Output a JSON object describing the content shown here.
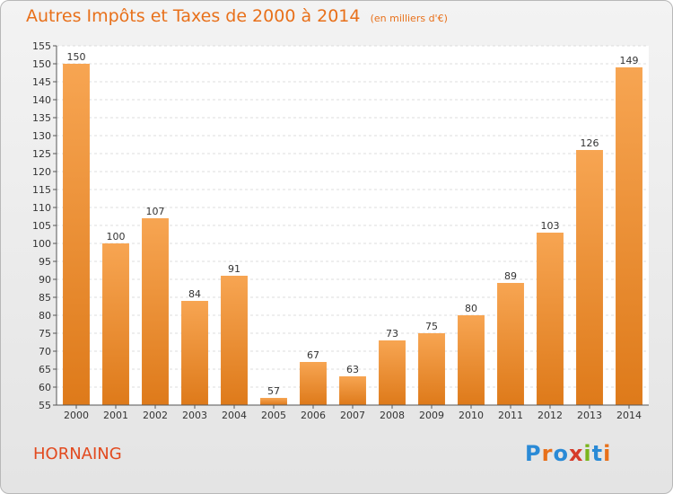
{
  "chart_data": {
    "type": "bar",
    "title": "Autres Impôts et Taxes de 2000 à 2014",
    "subtitle": "(en milliers d'€)",
    "categories": [
      "2000",
      "2001",
      "2002",
      "2003",
      "2004",
      "2005",
      "2006",
      "2007",
      "2008",
      "2009",
      "2010",
      "2011",
      "2012",
      "2013",
      "2014"
    ],
    "values": [
      150,
      100,
      107,
      84,
      91,
      57,
      67,
      63,
      73,
      75,
      80,
      89,
      103,
      126,
      149
    ],
    "ylim": [
      55,
      155
    ],
    "yticks": [
      55,
      60,
      65,
      70,
      75,
      80,
      85,
      90,
      95,
      100,
      105,
      110,
      115,
      120,
      125,
      130,
      135,
      140,
      145,
      150,
      155
    ],
    "grid": true,
    "bar_color": "#f08a2c"
  },
  "location": "HORNAING",
  "logo": {
    "letters": [
      "P",
      "r",
      "o",
      "x",
      "i",
      "t",
      "i"
    ],
    "colors": [
      "#2a8ad6",
      "#e8701a",
      "#2a8ad6",
      "#d63b2a",
      "#7ab51d",
      "#2a8ad6",
      "#e8701a"
    ]
  }
}
